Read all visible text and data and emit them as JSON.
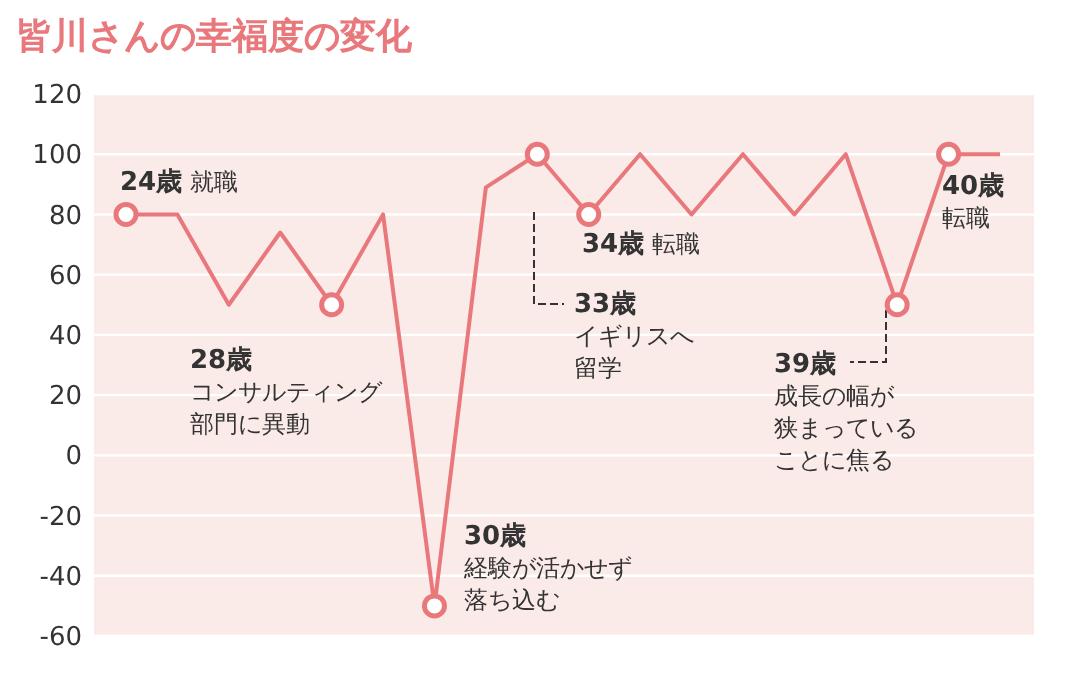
{
  "chart_data": {
    "type": "line",
    "title": "皆川さんの幸福度の変化",
    "categories": [
      null,
      null,
      null,
      null,
      null,
      null,
      null,
      null,
      null,
      null,
      null,
      null,
      null,
      null,
      null,
      null,
      null,
      null
    ],
    "series": [
      {
        "color": "#e9787c",
        "marker": "none",
        "values": [
          80,
          80,
          50,
          74,
          50,
          80,
          -50,
          89,
          100,
          80,
          100,
          80,
          100,
          80,
          100,
          50,
          100,
          100
        ]
      },
      {
        "type": "scatter",
        "color": "#e9787c",
        "marker": "circle",
        "values": [
          80,
          null,
          null,
          null,
          50,
          null,
          -50,
          null,
          100,
          80,
          null,
          null,
          null,
          null,
          null,
          50,
          100,
          null
        ]
      }
    ],
    "ylim": [
      -60,
      120
    ],
    "yticks": [
      -60,
      -40,
      -20,
      0,
      20,
      40,
      60,
      80,
      100,
      120
    ],
    "grid": "y",
    "annotations": [
      "24歳 就職",
      "28歳",
      "コンサルティング",
      "部門に異動",
      "30歳",
      "経験が活かせず",
      "落ち込む",
      "33歳",
      "イギリスへ",
      "留学",
      "34歳 転職",
      "39歳",
      "成長の幅が",
      "狭まっている",
      "ことに焦る",
      "40歳",
      "転職"
    ]
  }
}
